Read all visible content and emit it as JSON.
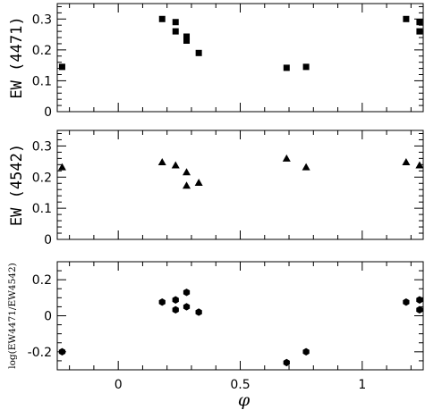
{
  "chart_data": [
    {
      "type": "scatter",
      "marker": "square",
      "ylabel": "EW (4471)",
      "xlim": [
        -0.25,
        1.25
      ],
      "ylim": [
        0,
        0.35
      ],
      "yticks": [
        0,
        0.1,
        0.2,
        0.3
      ],
      "ytick_labels": [
        "0",
        "0.1",
        "0.2",
        "0.3"
      ],
      "x": [
        -0.23,
        0.18,
        0.235,
        0.235,
        0.28,
        0.28,
        0.33,
        0.69,
        0.77,
        1.18,
        1.235,
        1.235
      ],
      "y": [
        0.145,
        0.3,
        0.29,
        0.26,
        0.243,
        0.23,
        0.19,
        0.142,
        0.145,
        0.3,
        0.29,
        0.26
      ]
    },
    {
      "type": "scatter",
      "marker": "triangle",
      "ylabel": "EW (4542)",
      "xlim": [
        -0.25,
        1.25
      ],
      "ylim": [
        0,
        0.35
      ],
      "yticks": [
        0,
        0.1,
        0.2,
        0.3
      ],
      "ytick_labels": [
        "0",
        "0.1",
        "0.2",
        "0.3"
      ],
      "x": [
        -0.23,
        0.18,
        0.235,
        0.28,
        0.28,
        0.33,
        0.69,
        0.77,
        1.18,
        1.235
      ],
      "y": [
        0.232,
        0.248,
        0.238,
        0.216,
        0.173,
        0.182,
        0.26,
        0.232,
        0.248,
        0.238
      ]
    },
    {
      "type": "scatter",
      "marker": "hexagon",
      "ylabel": "log(EW4471/EW4542)",
      "xlabel": "φ",
      "xlim": [
        -0.25,
        1.25
      ],
      "ylim": [
        -0.3,
        0.3
      ],
      "yticks": [
        -0.2,
        0,
        0.2
      ],
      "ytick_labels": [
        "-0.2",
        "0",
        "0.2"
      ],
      "xticks": [
        0,
        0.5,
        1
      ],
      "xtick_labels": [
        "0",
        "0.5",
        "1"
      ],
      "x": [
        -0.23,
        0.18,
        0.235,
        0.235,
        0.28,
        0.28,
        0.33,
        0.69,
        0.77,
        1.18,
        1.235,
        1.235
      ],
      "y": [
        -0.2,
        0.076,
        0.088,
        0.033,
        0.13,
        0.05,
        0.02,
        -0.26,
        -0.2,
        0.076,
        0.088,
        0.033
      ]
    }
  ]
}
